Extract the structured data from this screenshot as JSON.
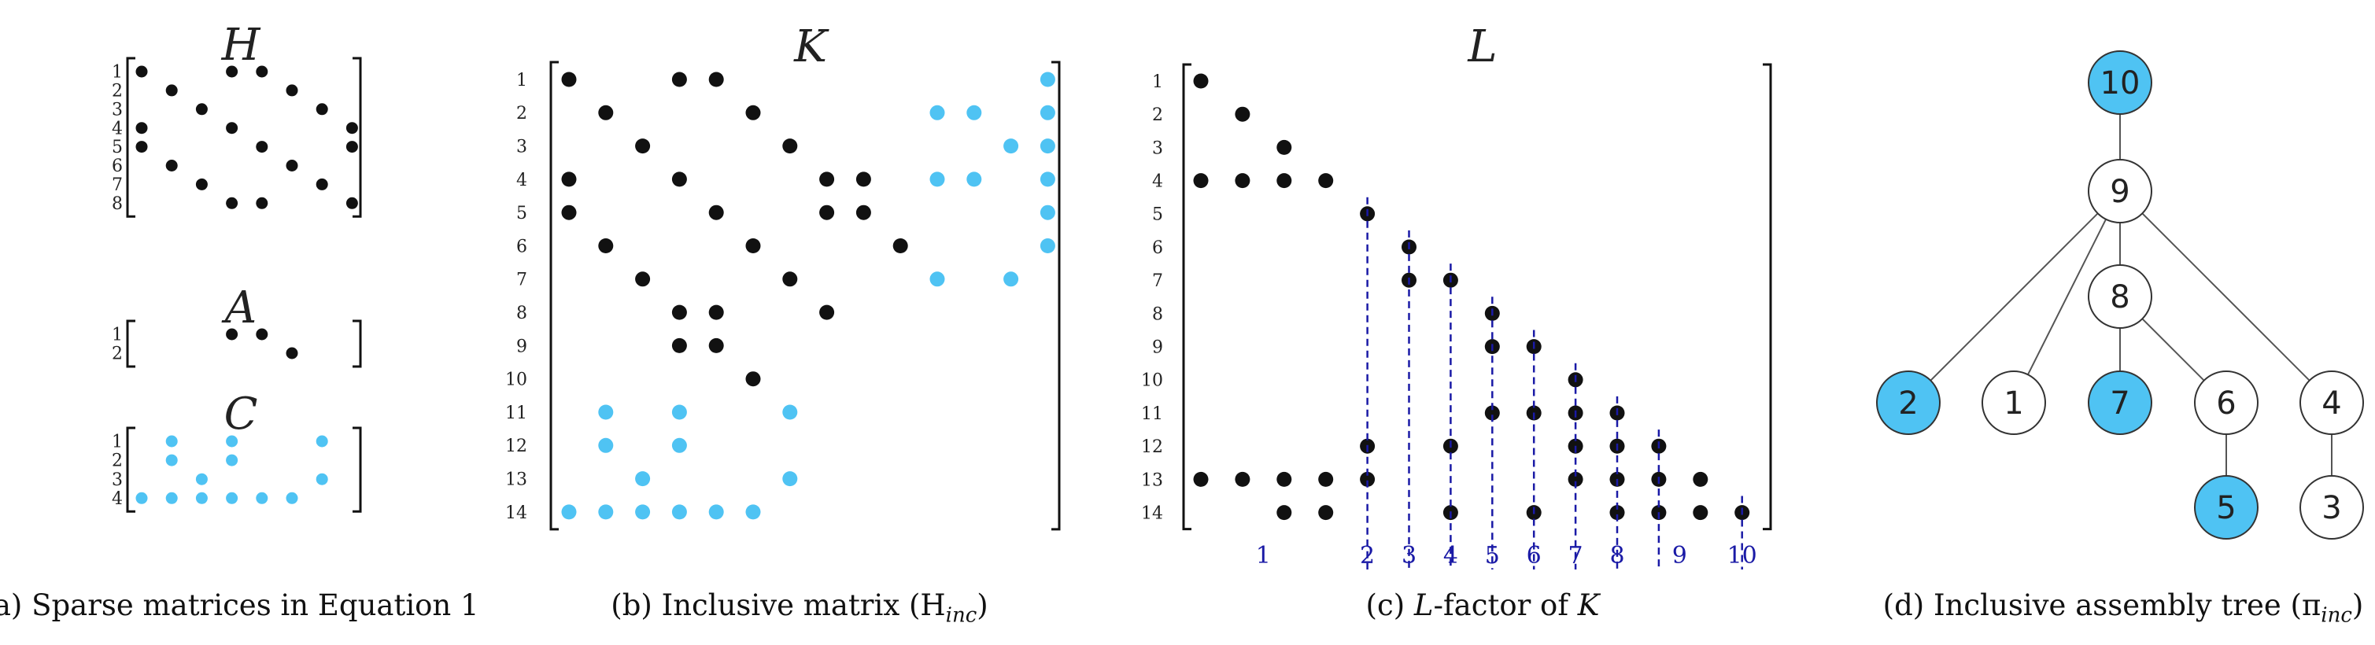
{
  "colors": {
    "black_dot": "#111111",
    "blue_dot": "#4fc3f3",
    "separator": "#1a1aa6",
    "node_fill_blue": "#4fc3f3"
  },
  "panel_a": {
    "H": {
      "title": "H",
      "nrows": 8,
      "ncols": 8,
      "black": [
        [
          1,
          1
        ],
        [
          1,
          4
        ],
        [
          1,
          5
        ],
        [
          2,
          2
        ],
        [
          2,
          6
        ],
        [
          3,
          3
        ],
        [
          3,
          7
        ],
        [
          4,
          1
        ],
        [
          4,
          4
        ],
        [
          4,
          8
        ],
        [
          5,
          1
        ],
        [
          5,
          5
        ],
        [
          5,
          8
        ],
        [
          6,
          2
        ],
        [
          6,
          6
        ],
        [
          7,
          3
        ],
        [
          7,
          7
        ],
        [
          8,
          4
        ],
        [
          8,
          5
        ],
        [
          8,
          8
        ]
      ]
    },
    "A": {
      "title": "A",
      "nrows": 2,
      "ncols": 8,
      "black": [
        [
          1,
          4
        ],
        [
          1,
          5
        ],
        [
          2,
          6
        ]
      ]
    },
    "C": {
      "title": "C",
      "nrows": 4,
      "ncols": 7,
      "blue": [
        [
          1,
          2
        ],
        [
          1,
          4
        ],
        [
          1,
          7
        ],
        [
          2,
          2
        ],
        [
          2,
          4
        ],
        [
          3,
          3
        ],
        [
          3,
          7
        ],
        [
          4,
          1
        ],
        [
          4,
          2
        ],
        [
          4,
          3
        ],
        [
          4,
          4
        ],
        [
          4,
          5
        ],
        [
          4,
          6
        ]
      ]
    }
  },
  "panel_b": {
    "K": {
      "title": "K",
      "nrows": 14,
      "ncols": 14,
      "black": [
        [
          1,
          1
        ],
        [
          1,
          4
        ],
        [
          1,
          5
        ],
        [
          2,
          2
        ],
        [
          2,
          6
        ],
        [
          3,
          3
        ],
        [
          3,
          7
        ],
        [
          4,
          1
        ],
        [
          4,
          4
        ],
        [
          4,
          8
        ],
        [
          4,
          9
        ],
        [
          5,
          1
        ],
        [
          5,
          5
        ],
        [
          5,
          8
        ],
        [
          5,
          9
        ],
        [
          6,
          2
        ],
        [
          6,
          6
        ],
        [
          6,
          10
        ],
        [
          7,
          3
        ],
        [
          7,
          7
        ],
        [
          8,
          4
        ],
        [
          8,
          5
        ],
        [
          8,
          8
        ],
        [
          9,
          4
        ],
        [
          9,
          5
        ],
        [
          10,
          6
        ]
      ],
      "blue": [
        [
          1,
          14
        ],
        [
          2,
          11
        ],
        [
          2,
          12
        ],
        [
          2,
          14
        ],
        [
          3,
          13
        ],
        [
          3,
          14
        ],
        [
          4,
          11
        ],
        [
          4,
          12
        ],
        [
          4,
          14
        ],
        [
          5,
          14
        ],
        [
          6,
          14
        ],
        [
          7,
          11
        ],
        [
          7,
          13
        ],
        [
          11,
          2
        ],
        [
          11,
          4
        ],
        [
          11,
          7
        ],
        [
          12,
          2
        ],
        [
          12,
          4
        ],
        [
          13,
          3
        ],
        [
          13,
          7
        ],
        [
          14,
          1
        ],
        [
          14,
          2
        ],
        [
          14,
          3
        ],
        [
          14,
          4
        ],
        [
          14,
          5
        ],
        [
          14,
          6
        ]
      ]
    }
  },
  "panel_c": {
    "L": {
      "title": "L",
      "nrows": 14,
      "ncols": 14,
      "black": [
        [
          1,
          1
        ],
        [
          2,
          2
        ],
        [
          3,
          3
        ],
        [
          4,
          1
        ],
        [
          4,
          2
        ],
        [
          4,
          3
        ],
        [
          4,
          4
        ],
        [
          5,
          5
        ],
        [
          6,
          6
        ],
        [
          7,
          6
        ],
        [
          7,
          7
        ],
        [
          8,
          8
        ],
        [
          9,
          8
        ],
        [
          9,
          9
        ],
        [
          10,
          10
        ],
        [
          11,
          8
        ],
        [
          11,
          9
        ],
        [
          11,
          10
        ],
        [
          11,
          11
        ],
        [
          12,
          5
        ],
        [
          12,
          7
        ],
        [
          12,
          10
        ],
        [
          12,
          11
        ],
        [
          12,
          12
        ],
        [
          13,
          1
        ],
        [
          13,
          2
        ],
        [
          13,
          3
        ],
        [
          13,
          4
        ],
        [
          13,
          5
        ],
        [
          13,
          10
        ],
        [
          13,
          11
        ],
        [
          13,
          12
        ],
        [
          13,
          13
        ],
        [
          14,
          3
        ],
        [
          14,
          4
        ],
        [
          14,
          7
        ],
        [
          14,
          9
        ],
        [
          14,
          11
        ],
        [
          14,
          12
        ],
        [
          14,
          13
        ],
        [
          14,
          14
        ]
      ],
      "separators": [
        [
          4.5,
          4.5
        ],
        [
          5.5,
          5.5
        ],
        [
          6.5,
          6.5
        ],
        [
          7.5,
          7.5
        ],
        [
          8.5,
          8.5
        ],
        [
          9.5,
          9.5
        ],
        [
          10.5,
          10.5
        ],
        [
          11.5,
          11.5
        ],
        [
          13.5,
          13.5
        ]
      ],
      "supernodes": [
        {
          "label": "1",
          "col": 2.5
        },
        {
          "label": "2",
          "col": 5
        },
        {
          "label": "3",
          "col": 6
        },
        {
          "label": "4",
          "col": 7
        },
        {
          "label": "5",
          "col": 8
        },
        {
          "label": "6",
          "col": 9
        },
        {
          "label": "7",
          "col": 10
        },
        {
          "label": "8",
          "col": 11
        },
        {
          "label": "9",
          "col": 12.5
        },
        {
          "label": "10",
          "col": 14
        }
      ]
    }
  },
  "panel_d": {
    "nodes": [
      {
        "id": "10",
        "blue": true
      },
      {
        "id": "9",
        "blue": false
      },
      {
        "id": "8",
        "blue": false
      },
      {
        "id": "2",
        "blue": true
      },
      {
        "id": "1",
        "blue": false
      },
      {
        "id": "7",
        "blue": true
      },
      {
        "id": "6",
        "blue": false
      },
      {
        "id": "4",
        "blue": false
      },
      {
        "id": "5",
        "blue": true
      },
      {
        "id": "3",
        "blue": false
      }
    ],
    "edges": [
      [
        "10",
        "9"
      ],
      [
        "9",
        "8"
      ],
      [
        "9",
        "2"
      ],
      [
        "9",
        "1"
      ],
      [
        "9",
        "4"
      ],
      [
        "8",
        "7"
      ],
      [
        "8",
        "6"
      ],
      [
        "6",
        "5"
      ],
      [
        "4",
        "3"
      ]
    ]
  },
  "captions": {
    "a": "(a) Sparse matrices in Equation 1",
    "b": "(b) Inclusive matrix (H",
    "b_sub": "inc",
    "b_end": ")",
    "c_pre": "(c) ",
    "c_it1": "L",
    "c_mid": "-factor of ",
    "c_it2": "K",
    "d": "(d) Inclusive assembly tree (π",
    "d_sub": "inc",
    "d_end": ")"
  }
}
